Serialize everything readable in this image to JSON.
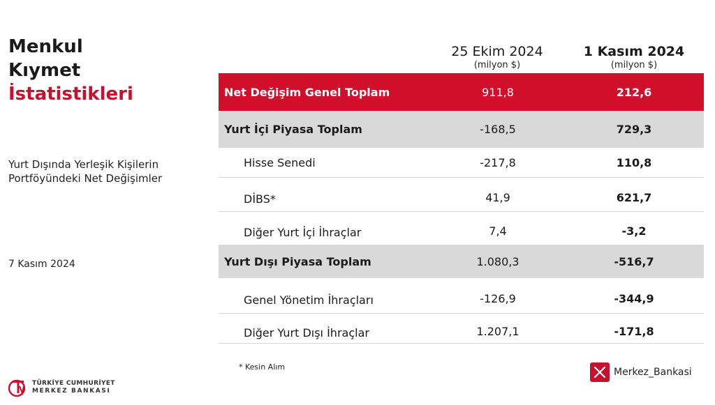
{
  "title": {
    "line1": "Menkul",
    "line2": "Kıymet",
    "line3": "İstatistikleri"
  },
  "subtitle": "Yurt Dışında Yerleşik Kişilerin Portföyündeki Net Değişimler",
  "date": "7 Kasım 2024",
  "columns": [
    {
      "label": "25 Ekim 2024",
      "unit": "(milyon $)"
    },
    {
      "label": "1 Kasım 2024",
      "unit": "(milyon $)"
    }
  ],
  "rows": [
    {
      "label": "Net Değişim Genel Toplam",
      "v1": "911,8",
      "v2": "212,6"
    },
    {
      "label": "Yurt İçi Piyasa Toplam",
      "v1": "-168,5",
      "v2": "729,3"
    },
    {
      "label": "Hisse Senedi",
      "v1": "-217,8",
      "v2": "110,8"
    },
    {
      "label": "DİBS*",
      "v1": "41,9",
      "v2": "621,7"
    },
    {
      "label": "Diğer Yurt İçi İhraçlar",
      "v1": "7,4",
      "v2": "-3,2"
    },
    {
      "label": "Yurt Dışı Piyasa Toplam",
      "v1": "1.080,3",
      "v2": "-516,7"
    },
    {
      "label": "Genel Yönetim İhraçları",
      "v1": "-126,9",
      "v2": "-344,9"
    },
    {
      "label": "Diğer Yurt Dışı İhraçlar",
      "v1": "1.207,1",
      "v2": "-171,8"
    }
  ],
  "footnote": "* Kesin Alım",
  "logo": {
    "line1": "TÜRKİYE CUMHURİYET",
    "line2": "MERKEZ BANKASI",
    "icon": "tcmb-logo-icon"
  },
  "social": {
    "icon": "x-icon",
    "handle": "Merkez_Bankasi"
  },
  "colors": {
    "accent": "#c8102e",
    "highlight_row": "#d0102b",
    "subtotal_row": "#d9d9d9"
  }
}
